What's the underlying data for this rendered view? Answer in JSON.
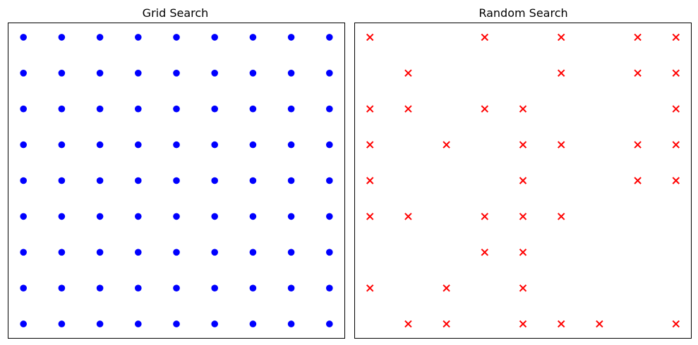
{
  "chart_data": [
    {
      "type": "scatter",
      "title": "Grid Search",
      "xlabel": "",
      "ylabel": "",
      "marker": "circle",
      "color": "#0000ff",
      "grid": false,
      "xlim": [
        0.6,
        9.4
      ],
      "ylim": [
        0.6,
        9.4
      ],
      "points": [
        [
          1,
          1
        ],
        [
          2,
          1
        ],
        [
          3,
          1
        ],
        [
          4,
          1
        ],
        [
          5,
          1
        ],
        [
          6,
          1
        ],
        [
          7,
          1
        ],
        [
          8,
          1
        ],
        [
          9,
          1
        ],
        [
          1,
          2
        ],
        [
          2,
          2
        ],
        [
          3,
          2
        ],
        [
          4,
          2
        ],
        [
          5,
          2
        ],
        [
          6,
          2
        ],
        [
          7,
          2
        ],
        [
          8,
          2
        ],
        [
          9,
          2
        ],
        [
          1,
          3
        ],
        [
          2,
          3
        ],
        [
          3,
          3
        ],
        [
          4,
          3
        ],
        [
          5,
          3
        ],
        [
          6,
          3
        ],
        [
          7,
          3
        ],
        [
          8,
          3
        ],
        [
          9,
          3
        ],
        [
          1,
          4
        ],
        [
          2,
          4
        ],
        [
          3,
          4
        ],
        [
          4,
          4
        ],
        [
          5,
          4
        ],
        [
          6,
          4
        ],
        [
          7,
          4
        ],
        [
          8,
          4
        ],
        [
          9,
          4
        ],
        [
          1,
          5
        ],
        [
          2,
          5
        ],
        [
          3,
          5
        ],
        [
          4,
          5
        ],
        [
          5,
          5
        ],
        [
          6,
          5
        ],
        [
          7,
          5
        ],
        [
          8,
          5
        ],
        [
          9,
          5
        ],
        [
          1,
          6
        ],
        [
          2,
          6
        ],
        [
          3,
          6
        ],
        [
          4,
          6
        ],
        [
          5,
          6
        ],
        [
          6,
          6
        ],
        [
          7,
          6
        ],
        [
          8,
          6
        ],
        [
          9,
          6
        ],
        [
          1,
          7
        ],
        [
          2,
          7
        ],
        [
          3,
          7
        ],
        [
          4,
          7
        ],
        [
          5,
          7
        ],
        [
          6,
          7
        ],
        [
          7,
          7
        ],
        [
          8,
          7
        ],
        [
          9,
          7
        ],
        [
          1,
          8
        ],
        [
          2,
          8
        ],
        [
          3,
          8
        ],
        [
          4,
          8
        ],
        [
          5,
          8
        ],
        [
          6,
          8
        ],
        [
          7,
          8
        ],
        [
          8,
          8
        ],
        [
          9,
          8
        ],
        [
          1,
          9
        ],
        [
          2,
          9
        ],
        [
          3,
          9
        ],
        [
          4,
          9
        ],
        [
          5,
          9
        ],
        [
          6,
          9
        ],
        [
          7,
          9
        ],
        [
          8,
          9
        ],
        [
          9,
          9
        ]
      ]
    },
    {
      "type": "scatter",
      "title": "Random Search",
      "xlabel": "",
      "ylabel": "",
      "marker": "x",
      "color": "#ff0000",
      "grid": false,
      "xlim": [
        0.6,
        9.4
      ],
      "ylim": [
        0.6,
        9.4
      ],
      "points": [
        [
          1,
          9
        ],
        [
          4,
          9
        ],
        [
          6,
          9
        ],
        [
          8,
          9
        ],
        [
          9,
          9
        ],
        [
          2,
          8
        ],
        [
          6,
          8
        ],
        [
          8,
          8
        ],
        [
          9,
          8
        ],
        [
          1,
          7
        ],
        [
          2,
          7
        ],
        [
          4,
          7
        ],
        [
          5,
          7
        ],
        [
          9,
          7
        ],
        [
          1,
          6
        ],
        [
          3,
          6
        ],
        [
          5,
          6
        ],
        [
          6,
          6
        ],
        [
          8,
          6
        ],
        [
          9,
          6
        ],
        [
          1,
          5
        ],
        [
          5,
          5
        ],
        [
          8,
          5
        ],
        [
          9,
          5
        ],
        [
          1,
          4
        ],
        [
          2,
          4
        ],
        [
          4,
          4
        ],
        [
          5,
          4
        ],
        [
          6,
          4
        ],
        [
          4,
          3
        ],
        [
          5,
          3
        ],
        [
          1,
          2
        ],
        [
          3,
          2
        ],
        [
          5,
          2
        ],
        [
          2,
          1
        ],
        [
          3,
          1
        ],
        [
          5,
          1
        ],
        [
          6,
          1
        ],
        [
          7,
          1
        ],
        [
          9,
          1
        ]
      ]
    }
  ]
}
